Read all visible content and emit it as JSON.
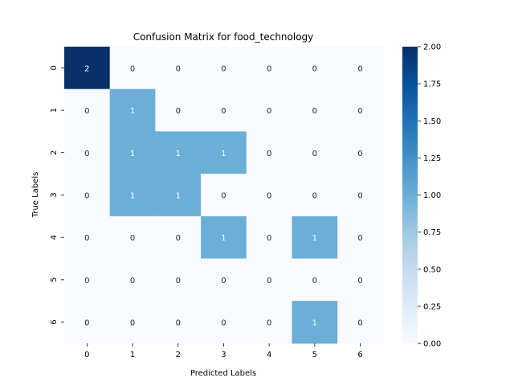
{
  "chart_data": {
    "type": "heatmap",
    "title": "Confusion Matrix for food_technology",
    "xlabel": "Predicted Labels",
    "ylabel": "True Labels",
    "x_categories": [
      "0",
      "1",
      "2",
      "3",
      "4",
      "5",
      "6"
    ],
    "y_categories": [
      "0",
      "1",
      "2",
      "3",
      "4",
      "5",
      "6"
    ],
    "values": [
      [
        2,
        0,
        0,
        0,
        0,
        0,
        0
      ],
      [
        0,
        1,
        0,
        0,
        0,
        0,
        0
      ],
      [
        0,
        1,
        1,
        1,
        0,
        0,
        0
      ],
      [
        0,
        1,
        1,
        0,
        0,
        0,
        0
      ],
      [
        0,
        0,
        0,
        1,
        0,
        1,
        0
      ],
      [
        0,
        0,
        0,
        0,
        0,
        0,
        0
      ],
      [
        0,
        0,
        0,
        0,
        0,
        1,
        0
      ]
    ],
    "colormap": "Blues",
    "colorbar": {
      "range": [
        0,
        2
      ],
      "ticks": [
        "0.00",
        "0.25",
        "0.50",
        "0.75",
        "1.00",
        "1.25",
        "1.50",
        "1.75",
        "2.00"
      ]
    },
    "colors": {
      "zero": "#f7fbff",
      "one": "#6baed6",
      "two": "#08306b"
    }
  }
}
